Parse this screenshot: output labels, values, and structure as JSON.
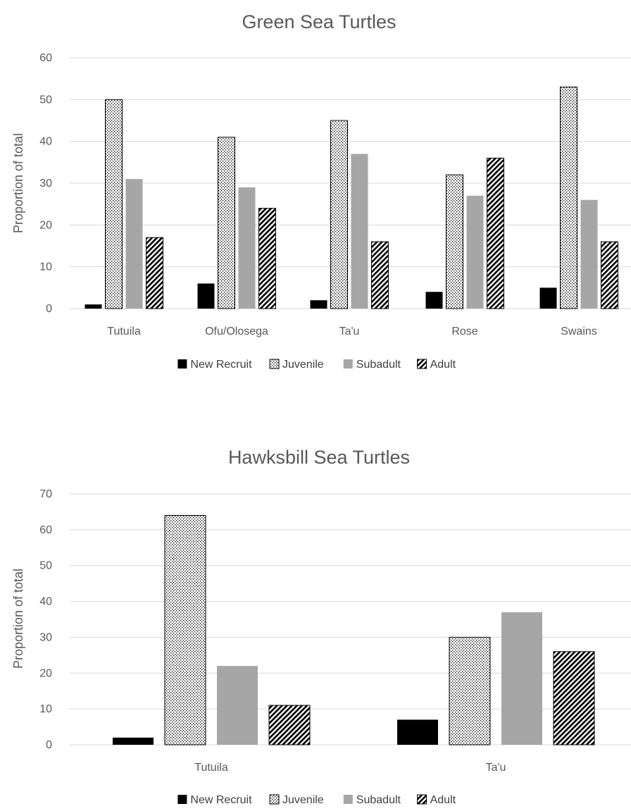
{
  "chart_data": [
    {
      "type": "bar",
      "title": "Green Sea Turtles",
      "xlabel": "",
      "ylabel": "Proportion of total",
      "ylim": [
        0,
        60
      ],
      "yticks": [
        0,
        10,
        20,
        30,
        40,
        50,
        60
      ],
      "grid": true,
      "legend_position": "bottom",
      "categories": [
        "Tutuila",
        "Ofu/Olosega",
        "Ta'u",
        "Rose",
        "Swains"
      ],
      "series": [
        {
          "name": "New Recruit",
          "pattern": "solid-black",
          "values": [
            1,
            6,
            2,
            4,
            5
          ]
        },
        {
          "name": "Juvenile",
          "pattern": "dots",
          "values": [
            50,
            41,
            45,
            32,
            53
          ]
        },
        {
          "name": "Subadult",
          "pattern": "solid-gray",
          "values": [
            31,
            29,
            37,
            27,
            26
          ]
        },
        {
          "name": "Adult",
          "pattern": "diagonal-stripes",
          "values": [
            17,
            24,
            16,
            36,
            16
          ]
        }
      ]
    },
    {
      "type": "bar",
      "title": "Hawksbill Sea Turtles",
      "xlabel": "",
      "ylabel": "Proportion of total",
      "ylim": [
        0,
        70
      ],
      "yticks": [
        0,
        10,
        20,
        30,
        40,
        50,
        60,
        70
      ],
      "grid": true,
      "legend_position": "bottom",
      "categories": [
        "Tutuila",
        "Ta'u"
      ],
      "series": [
        {
          "name": "New Recruit",
          "pattern": "solid-black",
          "values": [
            2,
            7
          ]
        },
        {
          "name": "Juvenile",
          "pattern": "dots",
          "values": [
            64,
            30
          ]
        },
        {
          "name": "Subadult",
          "pattern": "solid-gray",
          "values": [
            22,
            37
          ]
        },
        {
          "name": "Adult",
          "pattern": "diagonal-stripes",
          "values": [
            11,
            26
          ]
        }
      ]
    }
  ],
  "colors": {
    "text": "#595959",
    "grid": "#d9d9d9",
    "new_recruit": "#000000",
    "subadult": "#a6a6a6",
    "bar_outline": "#000000"
  }
}
